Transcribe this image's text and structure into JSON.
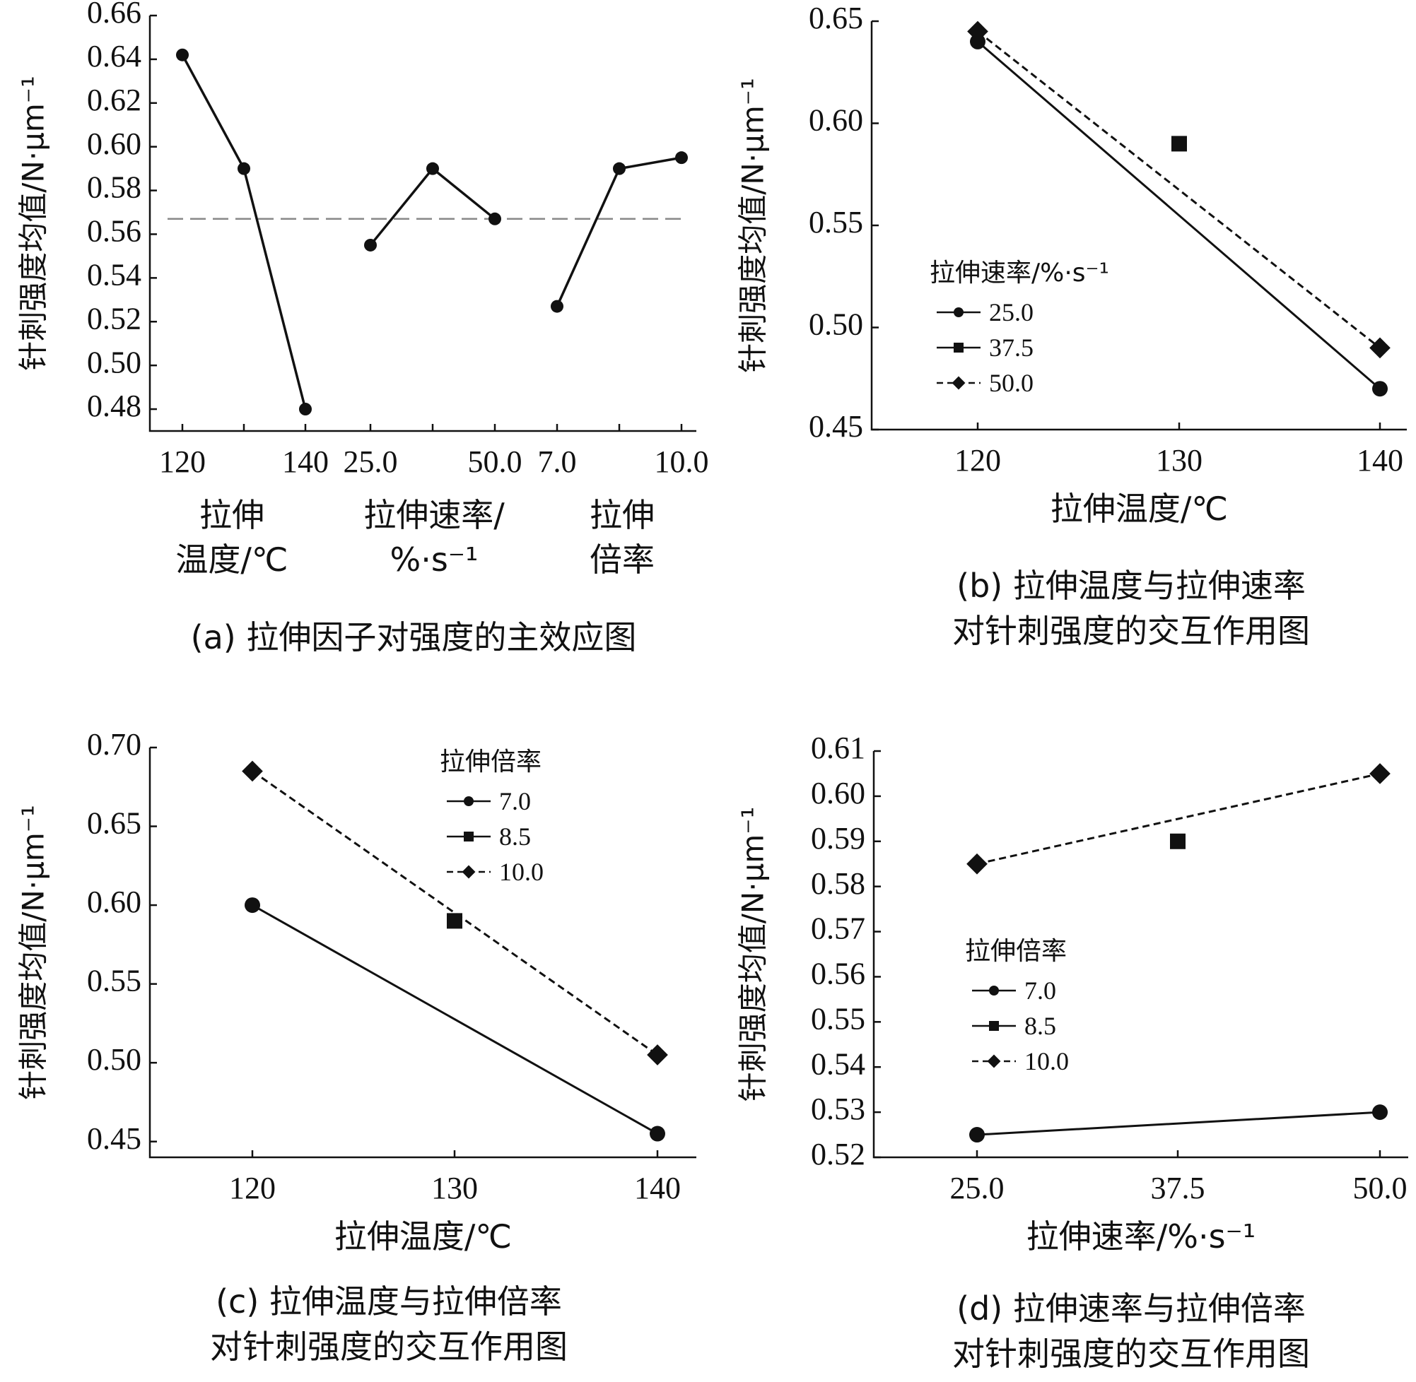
{
  "chart_data": [
    {
      "id": "a",
      "type": "line",
      "caption": "(a) 拉伸因子对强度的主效应图",
      "ylabel": "针刺强度均值/N·μm⁻¹",
      "ylim": [
        0.47,
        0.66
      ],
      "yticks": [
        "0.48",
        "0.50",
        "0.52",
        "0.54",
        "0.56",
        "0.58",
        "0.60",
        "0.62",
        "0.64",
        "0.66"
      ],
      "reference_line": 0.567,
      "groups": [
        {
          "name_lines": [
            "拉伸",
            "温度/℃"
          ],
          "tick_labels": [
            "120",
            "",
            "140"
          ],
          "values": [
            0.642,
            0.59,
            0.48
          ]
        },
        {
          "name_lines": [
            "拉伸速率/",
            "%·s⁻¹"
          ],
          "tick_labels": [
            "25.0",
            "",
            "50.0"
          ],
          "values": [
            0.555,
            0.59,
            0.567
          ]
        },
        {
          "name_lines": [
            "拉伸",
            "倍率"
          ],
          "tick_labels": [
            "7.0",
            "",
            "10.0"
          ],
          "values": [
            0.527,
            0.59,
            0.595
          ]
        }
      ]
    },
    {
      "id": "b",
      "type": "line",
      "caption_lines": [
        "(b) 拉伸温度与拉伸速率",
        "对针刺强度的交互作用图"
      ],
      "xlabel": "拉伸温度/℃",
      "ylabel": "针刺强度均值/N·μm⁻¹",
      "x": [
        120,
        130,
        140
      ],
      "xticks": [
        "120",
        "130",
        "140"
      ],
      "ylim": [
        0.45,
        0.65
      ],
      "yticks": [
        "0.45",
        "0.50",
        "0.55",
        "0.60",
        "0.65"
      ],
      "legend_title": "拉伸速率/%·s⁻¹",
      "series": [
        {
          "name": "25.0",
          "marker": "circle",
          "dash": false,
          "points": [
            [
              120,
              0.64
            ],
            [
              140,
              0.47
            ]
          ]
        },
        {
          "name": "37.5",
          "marker": "square",
          "dash": false,
          "points": [
            [
              130,
              0.59
            ]
          ]
        },
        {
          "name": "50.0",
          "marker": "diamond",
          "dash": true,
          "points": [
            [
              120,
              0.645
            ],
            [
              140,
              0.49
            ]
          ]
        }
      ]
    },
    {
      "id": "c",
      "type": "line",
      "caption_lines": [
        "(c) 拉伸温度与拉伸倍率",
        "对针刺强度的交互作用图"
      ],
      "xlabel": "拉伸温度/℃",
      "ylabel": "针刺强度均值/N·μm⁻¹",
      "x": [
        120,
        130,
        140
      ],
      "xticks": [
        "120",
        "130",
        "140"
      ],
      "ylim": [
        0.44,
        0.7
      ],
      "yticks": [
        "0.45",
        "0.50",
        "0.55",
        "0.60",
        "0.65",
        "0.70"
      ],
      "legend_title": "拉伸倍率",
      "series": [
        {
          "name": "7.0",
          "marker": "circle",
          "dash": false,
          "points": [
            [
              120,
              0.6
            ],
            [
              140,
              0.455
            ]
          ]
        },
        {
          "name": "8.5",
          "marker": "square",
          "dash": false,
          "points": [
            [
              130,
              0.59
            ]
          ]
        },
        {
          "name": "10.0",
          "marker": "diamond",
          "dash": true,
          "points": [
            [
              120,
              0.685
            ],
            [
              140,
              0.505
            ]
          ]
        }
      ]
    },
    {
      "id": "d",
      "type": "line",
      "caption_lines": [
        "(d) 拉伸速率与拉伸倍率",
        "对针刺强度的交互作用图"
      ],
      "xlabel": "拉伸速率/%·s⁻¹",
      "ylabel": "针刺强度均值/N·μm⁻¹",
      "x": [
        25.0,
        37.5,
        50.0
      ],
      "xticks": [
        "25.0",
        "37.5",
        "50.0"
      ],
      "ylim": [
        0.52,
        0.61
      ],
      "yticks": [
        "0.52",
        "0.53",
        "0.54",
        "0.55",
        "0.56",
        "0.57",
        "0.58",
        "0.59",
        "0.60",
        "0.61"
      ],
      "legend_title": "拉伸倍率",
      "series": [
        {
          "name": "7.0",
          "marker": "circle",
          "dash": false,
          "points": [
            [
              25.0,
              0.525
            ],
            [
              50.0,
              0.53
            ]
          ]
        },
        {
          "name": "8.5",
          "marker": "square",
          "dash": false,
          "points": [
            [
              37.5,
              0.59
            ]
          ]
        },
        {
          "name": "10.0",
          "marker": "diamond",
          "dash": true,
          "points": [
            [
              25.0,
              0.585
            ],
            [
              50.0,
              0.605
            ]
          ]
        }
      ]
    }
  ]
}
